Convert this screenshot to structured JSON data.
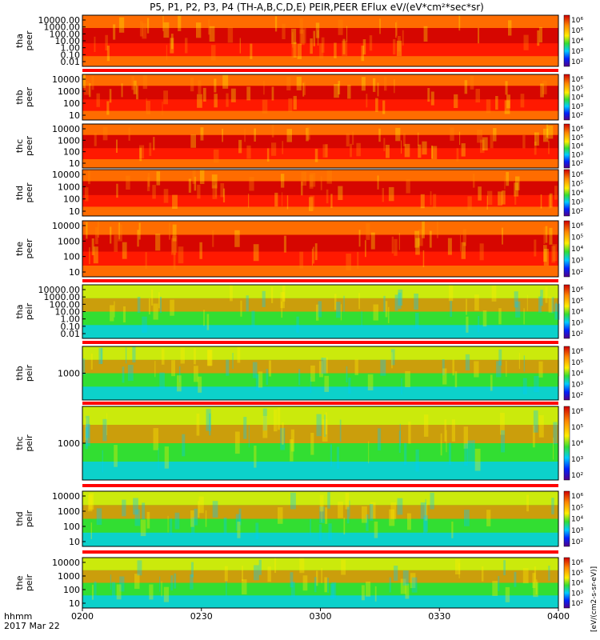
{
  "title": "P5, P1, P2, P3, P4 (TH-A,B,C,D,E) PEIR,PEER EFlux eV/(eV*cm²*sec*sr)",
  "time_label": "hhmm",
  "date_label": "2017 Mar 22",
  "colorbar_label": "[eV/(cm2-s-sr-eV)]",
  "colors": {
    "deep_red": "#c80000",
    "red": "#ff1a00",
    "orange": "#ff8800",
    "yellow": "#ffee00",
    "green": "#33dd33",
    "cyan": "#00ccff",
    "blue": "#0022ff",
    "purple": "#550088",
    "status_red": "#ff0000",
    "status_yellow": "#ffff00"
  },
  "chart_data": {
    "type": "heatmap",
    "x_ticks": [
      "0200",
      "0230",
      "0300",
      "0330",
      "0400"
    ],
    "colorbar_ticks": [
      "10⁶",
      "10⁵",
      "10⁴",
      "10³",
      "10²"
    ],
    "panels": [
      {
        "probe": "tha",
        "species": "peer",
        "y_ticks": [
          "10000.00",
          "1000.00",
          "100.00",
          "10.00",
          "1.00",
          "0.10",
          "0.01"
        ]
      },
      {
        "probe": "thb",
        "species": "peer",
        "y_ticks": [
          "10000",
          "1000",
          "100",
          "10"
        ]
      },
      {
        "probe": "thc",
        "species": "peer",
        "y_ticks": [
          "10000",
          "1000",
          "100",
          "10"
        ]
      },
      {
        "probe": "thd",
        "species": "peer",
        "y_ticks": [
          "10000",
          "1000",
          "100",
          "10"
        ]
      },
      {
        "probe": "the",
        "species": "peer",
        "y_ticks": [
          "10000",
          "1000",
          "100",
          "10"
        ]
      },
      {
        "probe": "tha",
        "species": "peir",
        "y_ticks": [
          "10000.00",
          "1000.00",
          "100.00",
          "10.00",
          "1.00",
          "0.10",
          "0.01"
        ]
      },
      {
        "probe": "thb",
        "species": "peir",
        "y_ticks": [
          "1000"
        ]
      },
      {
        "probe": "thc",
        "species": "peir",
        "y_ticks": [
          "1000"
        ]
      },
      {
        "probe": "thd",
        "species": "peir",
        "y_ticks": [
          "10000",
          "1000",
          "100",
          "10"
        ]
      },
      {
        "probe": "the",
        "species": "peir",
        "y_ticks": [
          "10000",
          "1000",
          "100",
          "10"
        ]
      }
    ]
  }
}
